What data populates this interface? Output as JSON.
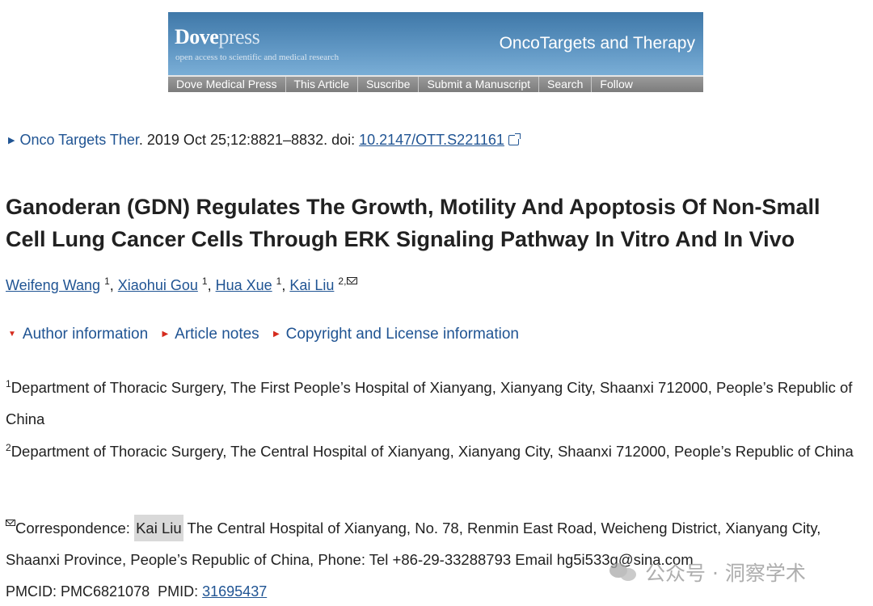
{
  "banner": {
    "logo_dove": "Dove",
    "logo_press": "press",
    "tagline": "open access to scientific and medical research",
    "journal": "OncoTargets and Therapy",
    "nav": [
      "Dove Medical Press",
      "This Article",
      "Suscribe",
      "Submit a Manuscript",
      "Search",
      "Follow"
    ]
  },
  "citation": {
    "journal_link": "Onco Targets Ther",
    "details": ". 2019 Oct 25;12:8821–8832. doi: ",
    "doi": "10.2147/OTT.S221161"
  },
  "article": {
    "title": "Ganoderan (GDN) Regulates The Growth, Motility And Apoptosis Of Non-Small Cell Lung Cancer Cells Through ERK Signaling Pathway In Vitro And In Vivo"
  },
  "authors": [
    {
      "name": "Weifeng Wang",
      "sup": "1"
    },
    {
      "name": "Xiaohui Gou",
      "sup": "1"
    },
    {
      "name": "Hua Xue",
      "sup": "1"
    },
    {
      "name": "Kai Liu",
      "sup": "2,"
    }
  ],
  "toggles": [
    "Author information",
    "Article notes",
    "Copyright and License information"
  ],
  "affiliations": [
    {
      "sup": "1",
      "text": "Department of Thoracic Surgery, The First People’s Hospital of Xianyang, Xianyang City, Shaanxi 712000, People’s Republic of China"
    },
    {
      "sup": "2",
      "text": "Department of Thoracic Surgery, The Central Hospital of Xianyang, Xianyang City, Shaanxi 712000, People’s Republic of China"
    }
  ],
  "correspondence": {
    "label": "Correspondence: ",
    "name": "Kai Liu",
    "text": " The Central Hospital of Xianyang, No. 78, Renmin East Road, Weicheng District, Xianyang City, Shaanxi Province, People’s Republic of China, Phone: Tel +86-29-33288793 Email hg5i533g@sina.com"
  },
  "ids": {
    "pmcid_label": "PMCID: ",
    "pmcid": "PMC6821078",
    "pmid_label": "PMID: ",
    "pmid": "31695437"
  },
  "watermark": {
    "text": "公众号 · 洞察学术"
  }
}
